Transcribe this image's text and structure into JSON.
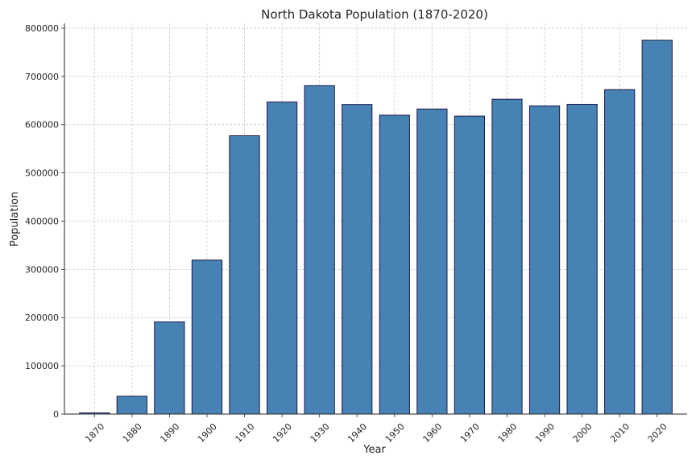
{
  "chart_data": {
    "type": "bar",
    "title": "North Dakota Population (1870-2020)",
    "xlabel": "Year",
    "ylabel": "Population",
    "categories": [
      "1870",
      "1880",
      "1890",
      "1900",
      "1910",
      "1920",
      "1930",
      "1940",
      "1950",
      "1960",
      "1970",
      "1980",
      "1990",
      "2000",
      "2010",
      "2020"
    ],
    "values": [
      2405,
      36909,
      190983,
      319146,
      577056,
      646872,
      680845,
      641935,
      619636,
      632446,
      617761,
      652717,
      638800,
      642200,
      672591,
      774948
    ],
    "ylim": [
      0,
      810000
    ],
    "yticks": [
      0,
      100000,
      200000,
      300000,
      400000,
      500000,
      600000,
      700000,
      800000
    ],
    "grid": true,
    "colors": {
      "bar_fill": "#4682b4",
      "bar_edge": "#1a1a4a"
    }
  }
}
